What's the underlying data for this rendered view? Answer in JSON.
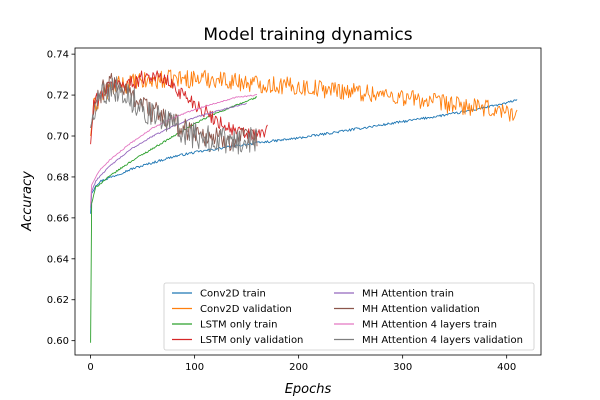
{
  "chart_data": {
    "type": "line",
    "title": "Model training dynamics",
    "xlabel": "Epochs",
    "ylabel": "Accuracy",
    "xlim": [
      -15,
      433
    ],
    "ylim": [
      0.593,
      0.743
    ],
    "xticks": [
      0,
      100,
      200,
      300,
      400
    ],
    "yticks": [
      0.6,
      0.62,
      0.64,
      0.66,
      0.68,
      0.7,
      0.72,
      0.74
    ],
    "legend_position": "lower-right",
    "series": [
      {
        "name": "Conv2D train",
        "color": "#1f77b4",
        "noise": 0.0006,
        "x": [
          0,
          1,
          5,
          10,
          20,
          40,
          60,
          80,
          100,
          150,
          200,
          250,
          300,
          350,
          400,
          410
        ],
        "y": [
          0.662,
          0.672,
          0.676,
          0.678,
          0.68,
          0.684,
          0.687,
          0.69,
          0.692,
          0.696,
          0.699,
          0.703,
          0.707,
          0.711,
          0.716,
          0.718
        ]
      },
      {
        "name": "Conv2D validation",
        "color": "#ff7f0e",
        "noise": 0.0045,
        "x": [
          0,
          3,
          10,
          20,
          40,
          60,
          80,
          100,
          120,
          150,
          200,
          250,
          300,
          350,
          400,
          410
        ],
        "y": [
          0.7,
          0.714,
          0.719,
          0.724,
          0.726,
          0.727,
          0.728,
          0.728,
          0.728,
          0.726,
          0.724,
          0.722,
          0.719,
          0.715,
          0.712,
          0.711
        ]
      },
      {
        "name": "LSTM only train",
        "color": "#2ca02c",
        "noise": 0.0004,
        "x": [
          0,
          1,
          5,
          10,
          20,
          40,
          60,
          80,
          100,
          120,
          140,
          160
        ],
        "y": [
          0.599,
          0.667,
          0.675,
          0.677,
          0.681,
          0.688,
          0.694,
          0.7,
          0.706,
          0.711,
          0.715,
          0.719
        ]
      },
      {
        "name": "LSTM only validation",
        "color": "#d62728",
        "noise": 0.0035,
        "x": [
          0,
          3,
          10,
          20,
          40,
          55,
          70,
          85,
          100,
          120,
          140,
          160,
          170
        ],
        "y": [
          0.696,
          0.716,
          0.72,
          0.725,
          0.726,
          0.73,
          0.728,
          0.722,
          0.716,
          0.708,
          0.702,
          0.7,
          0.703
        ]
      },
      {
        "name": "MH Attention train",
        "color": "#9467bd",
        "noise": 0.0003,
        "x": [
          0,
          1,
          5,
          10,
          20,
          40,
          60,
          80,
          100,
          120,
          150
        ],
        "y": [
          0.665,
          0.673,
          0.678,
          0.681,
          0.686,
          0.694,
          0.7,
          0.705,
          0.709,
          0.712,
          0.716
        ]
      },
      {
        "name": "MH Attention validation",
        "color": "#8c564b",
        "noise": 0.0055,
        "x": [
          0,
          5,
          10,
          20,
          30,
          45,
          60,
          80,
          100,
          120,
          140,
          160
        ],
        "y": [
          0.704,
          0.716,
          0.721,
          0.726,
          0.724,
          0.718,
          0.712,
          0.706,
          0.702,
          0.699,
          0.698,
          0.699
        ]
      },
      {
        "name": "MH Attention 4 layers train",
        "color": "#e377c2",
        "noise": 0.0003,
        "x": [
          0,
          1,
          5,
          10,
          20,
          40,
          60,
          80,
          100,
          120,
          140,
          160
        ],
        "y": [
          0.667,
          0.676,
          0.68,
          0.684,
          0.689,
          0.697,
          0.704,
          0.709,
          0.713,
          0.716,
          0.719,
          0.72
        ]
      },
      {
        "name": "MH Attention 4 layers validation",
        "color": "#7f7f7f",
        "noise": 0.0065,
        "x": [
          0,
          5,
          10,
          20,
          30,
          45,
          60,
          80,
          100,
          120,
          140,
          160
        ],
        "y": [
          0.704,
          0.716,
          0.72,
          0.724,
          0.722,
          0.716,
          0.71,
          0.705,
          0.7,
          0.698,
          0.697,
          0.698
        ]
      }
    ]
  }
}
